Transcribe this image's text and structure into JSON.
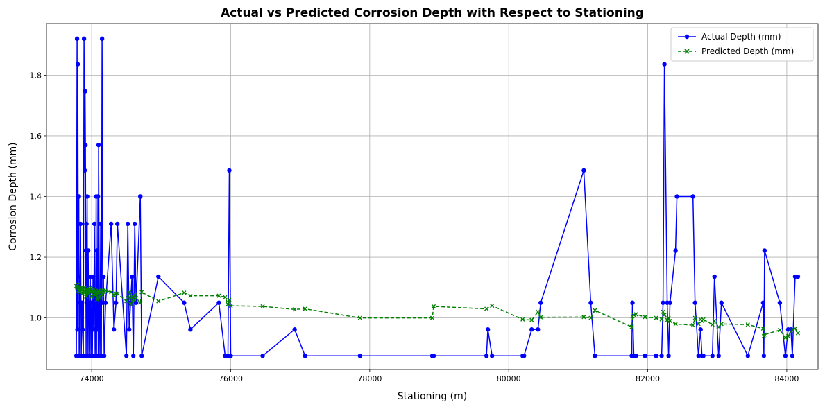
{
  "chart_data": {
    "type": "line",
    "title": "Actual vs Predicted Corrosion Depth with Respect to Stationing",
    "xlabel": "Stationing (m)",
    "ylabel": "Corrosion Depth (mm)",
    "xlim": [
      73350,
      84450
    ],
    "ylim": [
      0.83,
      1.97
    ],
    "xticks": [
      74000,
      76000,
      78000,
      80000,
      82000,
      84000
    ],
    "yticks": [
      1.0,
      1.2,
      1.4,
      1.6,
      1.8
    ],
    "xtick_labels": [
      "74000",
      "76000",
      "78000",
      "80000",
      "82000",
      "84000"
    ],
    "ytick_labels": [
      "1.0",
      "1.2",
      "1.4",
      "1.6",
      "1.8"
    ],
    "grid": true,
    "legend_position": "top-right",
    "series": [
      {
        "name": "Actual Depth (mm)",
        "color": "#0000ff",
        "line_style": "solid",
        "marker": "circle",
        "x": [
          73780,
          73790,
          73795,
          73800,
          73805,
          73810,
          73815,
          73820,
          73830,
          73840,
          73850,
          73860,
          73870,
          73880,
          73890,
          73900,
          73905,
          73910,
          73915,
          73920,
          73925,
          73930,
          73935,
          73940,
          73945,
          73950,
          73960,
          73970,
          73980,
          73990,
          74000,
          74010,
          74020,
          74030,
          74040,
          74050,
          74060,
          74065,
          74070,
          74075,
          74080,
          74085,
          74090,
          74095,
          74100,
          74110,
          74120,
          74130,
          74140,
          74150,
          74160,
          74170,
          74180,
          74200,
          74280,
          74320,
          74350,
          74370,
          74500,
          74520,
          74540,
          74560,
          74580,
          74600,
          74620,
          74640,
          74700,
          74720,
          74960,
          75330,
          75420,
          75830,
          75920,
          75960,
          75980,
          76000,
          76460,
          76920,
          77070,
          77860,
          78900,
          78920,
          79680,
          79700,
          79760,
          80200,
          80220,
          80330,
          80420,
          80460,
          81080,
          81180,
          81240,
          81770,
          81780,
          81800,
          81830,
          81960,
          82120,
          82200,
          82220,
          82240,
          82280,
          82300,
          82320,
          82400,
          82420,
          82650,
          82680,
          82730,
          82760,
          82780,
          82800,
          82930,
          82960,
          83020,
          83060,
          83440,
          83660,
          83670,
          83680,
          83900,
          83980,
          84020,
          84060,
          84080,
          84120,
          84160
        ],
        "y": [
          0.875,
          1.92,
          0.962,
          1.836,
          1.31,
          1.136,
          1.4,
          0.875,
          1.05,
          1.31,
          0.875,
          1.05,
          0.962,
          0.875,
          1.92,
          1.486,
          1.747,
          1.57,
          1.222,
          0.875,
          1.31,
          1.05,
          1.4,
          0.875,
          1.136,
          1.222,
          0.875,
          1.05,
          1.136,
          0.875,
          1.05,
          0.875,
          1.136,
          0.962,
          1.31,
          0.875,
          1.05,
          1.4,
          0.875,
          1.222,
          1.05,
          0.962,
          1.4,
          0.875,
          1.57,
          1.05,
          0.875,
          1.31,
          0.875,
          1.92,
          1.05,
          1.136,
          0.875,
          1.05,
          1.31,
          0.962,
          1.05,
          1.31,
          0.875,
          1.31,
          0.962,
          1.05,
          1.136,
          0.875,
          1.31,
          1.05,
          1.4,
          0.875,
          1.136,
          1.05,
          0.962,
          1.05,
          0.875,
          0.875,
          1.486,
          0.875,
          0.875,
          0.962,
          0.875,
          0.875,
          0.875,
          0.875,
          0.875,
          0.962,
          0.875,
          0.875,
          0.875,
          0.962,
          0.962,
          1.05,
          1.486,
          1.05,
          0.875,
          0.875,
          1.05,
          0.875,
          0.875,
          0.875,
          0.875,
          0.875,
          1.05,
          1.836,
          1.05,
          0.875,
          1.05,
          1.222,
          1.4,
          1.4,
          1.05,
          0.875,
          0.962,
          0.875,
          0.875,
          0.875,
          1.136,
          0.875,
          1.05,
          0.875,
          1.05,
          0.875,
          1.222,
          1.05,
          0.875,
          0.962,
          0.962,
          0.875,
          1.136,
          1.136
        ]
      },
      {
        "name": "Predicted Depth (mm)",
        "color": "#008000",
        "line_style": "dashed",
        "marker": "x",
        "x": [
          73780,
          73790,
          73800,
          73810,
          73820,
          73830,
          73840,
          73850,
          73860,
          73870,
          73880,
          73890,
          73900,
          73910,
          73920,
          73930,
          73940,
          73950,
          73960,
          73970,
          73980,
          73990,
          74000,
          74010,
          74020,
          74030,
          74040,
          74050,
          74060,
          74070,
          74080,
          74090,
          74100,
          74110,
          74120,
          74130,
          74140,
          74150,
          74160,
          74170,
          74200,
          74280,
          74320,
          74350,
          74370,
          74500,
          74520,
          74540,
          74560,
          74580,
          74600,
          74620,
          74640,
          74700,
          74720,
          74960,
          75330,
          75420,
          75830,
          75920,
          75960,
          75980,
          76000,
          76460,
          76920,
          77070,
          77860,
          78900,
          78920,
          79680,
          79760,
          80200,
          80330,
          80420,
          80460,
          81080,
          81180,
          81240,
          81770,
          81780,
          81800,
          81830,
          81960,
          82120,
          82200,
          82220,
          82240,
          82280,
          82300,
          82320,
          82400,
          82650,
          82680,
          82730,
          82760,
          82780,
          82800,
          82930,
          82960,
          83020,
          83060,
          83440,
          83660,
          83670,
          83680,
          83900,
          83980,
          84020,
          84060,
          84080,
          84120,
          84160
        ],
        "y": [
          1.105,
          1.1,
          1.11,
          1.09,
          1.1,
          1.085,
          1.095,
          1.1,
          1.09,
          1.08,
          1.095,
          1.09,
          1.1,
          1.085,
          1.07,
          1.095,
          1.09,
          1.08,
          1.095,
          1.09,
          1.1,
          1.085,
          1.07,
          1.09,
          1.085,
          1.095,
          1.08,
          1.075,
          1.09,
          1.085,
          1.06,
          1.08,
          1.09,
          1.065,
          1.07,
          1.085,
          1.09,
          1.075,
          1.09,
          1.085,
          1.09,
          1.085,
          1.075,
          1.08,
          1.08,
          1.055,
          1.065,
          1.085,
          1.045,
          1.07,
          1.06,
          1.075,
          1.065,
          1.05,
          1.085,
          1.055,
          1.083,
          1.073,
          1.073,
          1.068,
          1.045,
          1.06,
          1.04,
          1.038,
          1.028,
          1.03,
          1.0,
          1.0,
          1.038,
          1.03,
          1.04,
          0.995,
          0.993,
          1.02,
          1.002,
          1.003,
          1.0,
          1.025,
          0.97,
          1.005,
          1.01,
          1.012,
          1.003,
          1.0,
          0.995,
          1.02,
          1.01,
          0.993,
          1.0,
          0.99,
          0.98,
          0.976,
          1.0,
          0.98,
          0.995,
          0.99,
          0.995,
          0.978,
          0.99,
          0.97,
          0.98,
          0.978,
          0.965,
          0.94,
          0.945,
          0.96,
          0.935,
          0.94,
          0.955,
          0.96,
          0.965,
          0.95
        ]
      }
    ]
  }
}
